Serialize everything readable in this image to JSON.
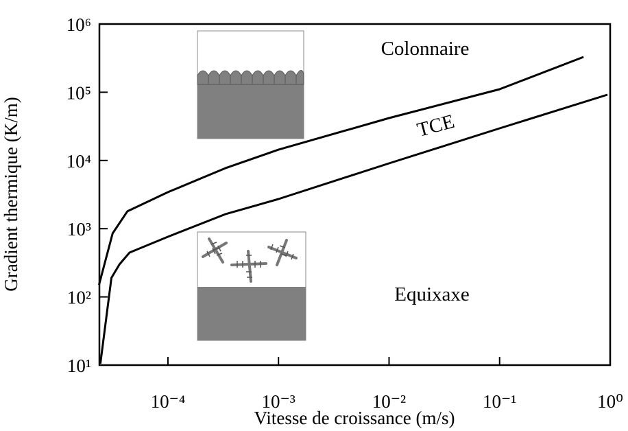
{
  "chart_data": {
    "type": "line",
    "xlabel": "Vitesse de croissance (m/s)",
    "ylabel": "Gradient thermique (K/m)",
    "xscale": "log",
    "yscale": "log",
    "xlim": [
      2.4e-05,
      1
    ],
    "ylim": [
      10,
      1000000
    ],
    "xticks": [
      {
        "value": 0.0001,
        "label": "10⁻⁴"
      },
      {
        "value": 0.001,
        "label": "10⁻³"
      },
      {
        "value": 0.01,
        "label": "10⁻²"
      },
      {
        "value": 0.1,
        "label": "10⁻¹"
      },
      {
        "value": 1,
        "label": "10⁰"
      }
    ],
    "yticks": [
      {
        "value": 10,
        "label": "10¹"
      },
      {
        "value": 100,
        "label": "10²"
      },
      {
        "value": 1000,
        "label": "10³"
      },
      {
        "value": 10000,
        "label": "10⁴"
      },
      {
        "value": 100000,
        "label": "10⁵"
      },
      {
        "value": 1000000,
        "label": "10⁶"
      }
    ],
    "series": [
      {
        "color": "#000000",
        "x": [
          2.38e-05,
          3.16e-05,
          4.3e-05,
          0.0001,
          0.00033,
          0.001,
          0.01,
          0.1,
          0.574
        ],
        "values": [
          150,
          855,
          1795,
          3430,
          7700,
          14400,
          41900,
          110700,
          329000
        ]
      },
      {
        "color": "#000000",
        "x": [
          2.45e-05,
          3.08e-05,
          3.65e-05,
          4.5e-05,
          0.0001,
          0.00033,
          0.001,
          0.01,
          0.1,
          0.944
        ],
        "values": [
          10.5,
          190,
          301,
          447,
          760,
          1630,
          2720,
          9080,
          29600,
          92000
        ]
      }
    ],
    "annotations": [
      "Colonnaire",
      "TCE",
      "Equixaxe"
    ]
  }
}
